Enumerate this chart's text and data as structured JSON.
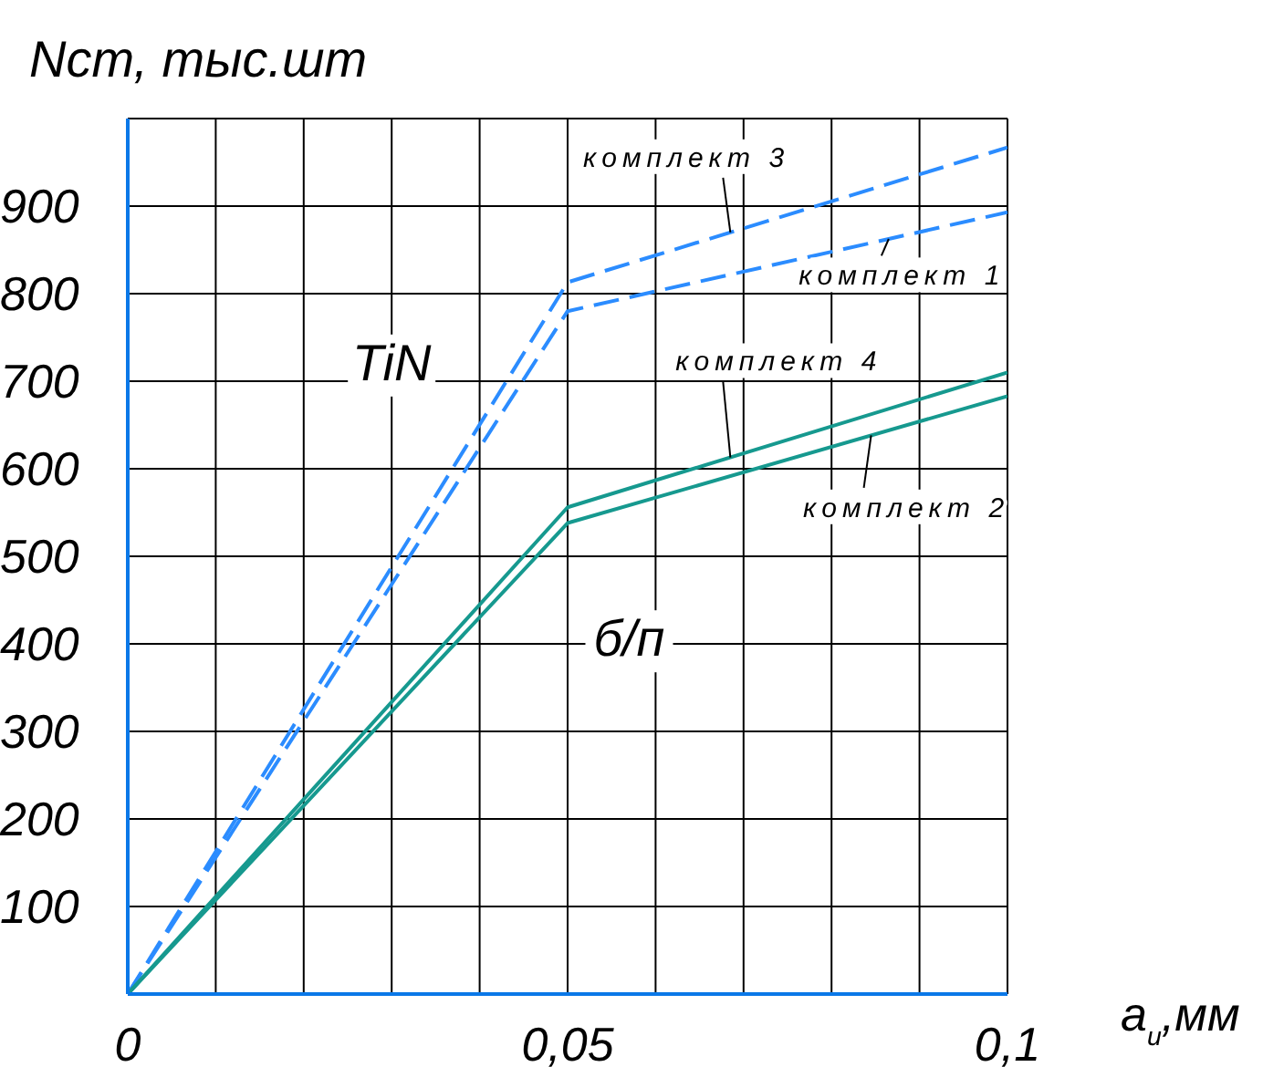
{
  "chart_data": {
    "type": "line",
    "ylabel": "Nст, тыс.шт",
    "xlabel": "a$_{и}$,мм",
    "xlim": [
      0,
      0.1
    ],
    "ylim": [
      0,
      1000
    ],
    "xticks": [
      {
        "value": 0,
        "label": "0"
      },
      {
        "value": 0.01,
        "label": null
      },
      {
        "value": 0.02,
        "label": null
      },
      {
        "value": 0.03,
        "label": null
      },
      {
        "value": 0.04,
        "label": null
      },
      {
        "value": 0.05,
        "label": "0,05"
      },
      {
        "value": 0.06,
        "label": null
      },
      {
        "value": 0.07,
        "label": null
      },
      {
        "value": 0.08,
        "label": null
      },
      {
        "value": 0.09,
        "label": null
      },
      {
        "value": 0.1,
        "label": "0,1"
      }
    ],
    "yticks": [
      100,
      200,
      300,
      400,
      500,
      600,
      700,
      800,
      900,
      {
        "value": 1000,
        "label": null
      }
    ],
    "grid": true,
    "marker": "none",
    "x": [
      0,
      0.05,
      0.1
    ],
    "series": [
      {
        "name": "комплект 3",
        "color": "#2b8cff",
        "line_style": "dashed",
        "values": [
          0,
          813,
          967
        ]
      },
      {
        "name": "комплект 1",
        "color": "#2b8cff",
        "line_style": "dashed",
        "values": [
          0,
          780,
          893
        ]
      },
      {
        "name": "комплект 4",
        "color": "#16998f",
        "line_style": "solid",
        "values": [
          0,
          556,
          710
        ]
      },
      {
        "name": "комплект 2",
        "color": "#16998f",
        "line_style": "solid",
        "values": [
          0,
          538,
          683
        ]
      }
    ],
    "annotations": [
      "TiN",
      "б/п"
    ]
  }
}
